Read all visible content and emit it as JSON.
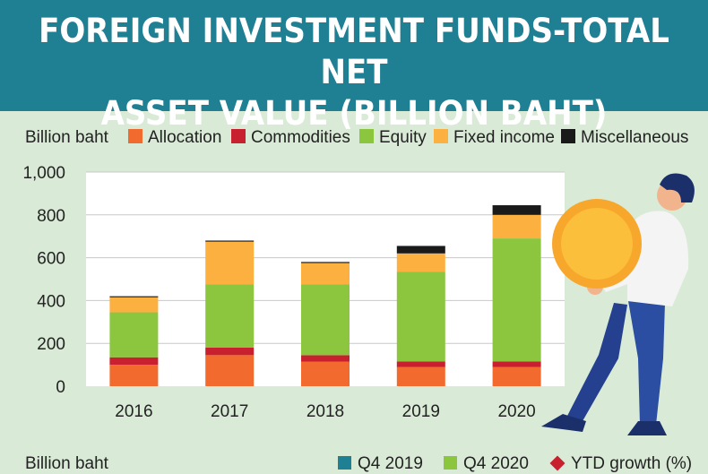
{
  "header": {
    "title_line1": "FOREIGN INVESTMENT FUNDS-TOTAL NET",
    "title_line2": "ASSET VALUE (BILLION BAHT)"
  },
  "legend": {
    "unit_label": "Billion baht",
    "items": [
      {
        "label": "Allocation",
        "color": "#f26a2e"
      },
      {
        "label": "Commodities",
        "color": "#c8202f"
      },
      {
        "label": "Equity",
        "color": "#8cc63f"
      },
      {
        "label": "Fixed income",
        "color": "#fbb040"
      },
      {
        "label": "Miscellaneous",
        "color": "#1a1a1a"
      }
    ]
  },
  "chart_data": {
    "type": "bar",
    "stacked": true,
    "categories": [
      "2016",
      "2017",
      "2018",
      "2019",
      "2020"
    ],
    "series": [
      {
        "name": "Allocation",
        "color": "#f26a2e",
        "values": [
          100,
          145,
          115,
          90,
          90
        ]
      },
      {
        "name": "Commodities",
        "color": "#c8202f",
        "values": [
          35,
          35,
          30,
          25,
          25
        ]
      },
      {
        "name": "Equity",
        "color": "#8cc63f",
        "values": [
          210,
          295,
          330,
          420,
          575
        ]
      },
      {
        "name": "Fixed income",
        "color": "#fbb040",
        "values": [
          70,
          200,
          100,
          85,
          110
        ]
      },
      {
        "name": "Miscellaneous",
        "color": "#1a1a1a",
        "values": [
          5,
          5,
          5,
          35,
          45
        ]
      }
    ],
    "ylim": [
      0,
      1000
    ],
    "yticks": [
      "0",
      "200",
      "400",
      "600",
      "800",
      "1,000"
    ],
    "ylabel": "Billion baht",
    "grid": true,
    "legend_position": "top"
  },
  "footer": {
    "unit_label": "Billion baht",
    "items": [
      {
        "label": "Q4 2019",
        "color": "#1f7f93",
        "shape": "square"
      },
      {
        "label": "Q4 2020",
        "color": "#8cc63f",
        "shape": "square"
      },
      {
        "label": "YTD growth (%)",
        "color": "#c8202f",
        "shape": "diamond"
      }
    ]
  }
}
